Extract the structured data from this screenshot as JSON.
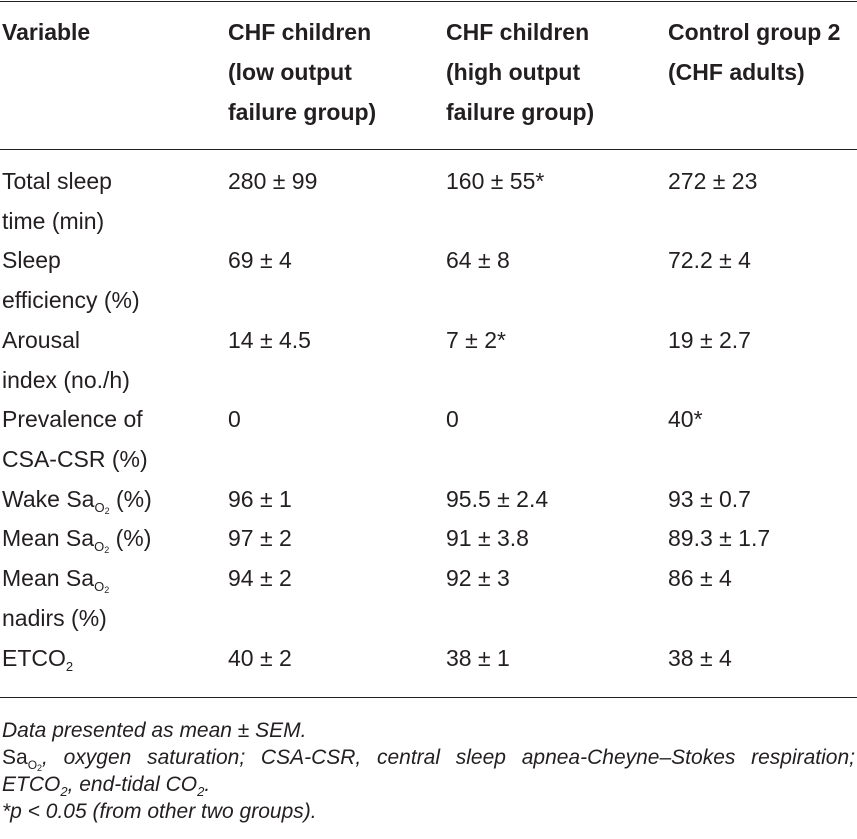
{
  "table": {
    "headers": [
      [
        "Variable"
      ],
      [
        "CHF children",
        "(low output",
        "failure group)"
      ],
      [
        "CHF children",
        "(high output",
        "failure group)"
      ],
      [
        "Control group 2",
        "(CHF adults)"
      ]
    ],
    "rows": [
      {
        "variable": [
          "Total sleep",
          "time (min)"
        ],
        "low": "280 ± 99",
        "high": "160 ± 55*",
        "control": "272 ± 23"
      },
      {
        "variable": [
          "Sleep",
          "efficiency (%)"
        ],
        "low": "69 ± 4",
        "high": "64 ± 8",
        "control": "72.2 ± 4"
      },
      {
        "variable": [
          "Arousal",
          "index (no./h)"
        ],
        "low": "14 ± 4.5",
        "high": "7 ± 2*",
        "control": "19 ± 2.7"
      },
      {
        "variable": [
          "Prevalence of",
          "CSA-CSR (%)"
        ],
        "low": "0",
        "high": "0",
        "control": "40*"
      },
      {
        "variable_parts": [
          "Wake Sa",
          "O",
          "2",
          " (%)"
        ],
        "low": "96 ± 1",
        "high": "95.5 ± 2.4",
        "control": "93 ± 0.7"
      },
      {
        "variable_parts": [
          "Mean Sa",
          "O",
          "2",
          " (%)"
        ],
        "low": "97 ± 2",
        "high": "91 ± 3.8",
        "control": "89.3 ± 1.7"
      },
      {
        "variable_parts": [
          "Mean Sa",
          "O",
          "2",
          "nadirs (%)"
        ],
        "low": "94 ± 2",
        "high": "92 ± 3",
        "control": "86 ± 4"
      },
      {
        "variable_parts": [
          "ETCO",
          "2"
        ],
        "low": "40 ± 2",
        "high": "38 ± 1",
        "control": "38 ± 4"
      }
    ]
  },
  "footnotes": {
    "line1": "Data presented as mean ± SEM.",
    "abbrev_sa": "Sa",
    "abbrev_o": "O",
    "abbrev_2": "2",
    "abbrev_text1": ", oxygen saturation; CSA-CSR, central sleep apnea-Cheyne–Stokes respiration; ETCO",
    "abbrev_sub2": "2",
    "abbrev_text2": ", end-tidal CO",
    "abbrev_sub3": "2",
    "abbrev_end": ".",
    "line3": "*p < 0.05 (from other two groups)."
  }
}
